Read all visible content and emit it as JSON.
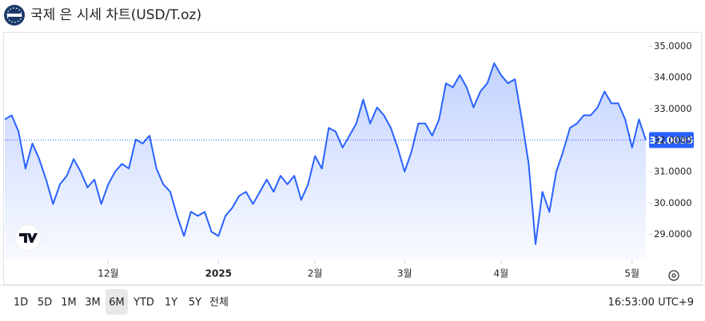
{
  "header": {
    "title": "국제 은 시세 차트(USD/T.oz)"
  },
  "chart_data": {
    "type": "area",
    "series": [
      {
        "name": "Silver",
        "color": "#2962ff",
        "values": [
          32.67,
          32.8,
          32.28,
          31.1,
          31.9,
          31.4,
          30.75,
          29.97,
          30.6,
          30.87,
          31.4,
          31.0,
          30.5,
          30.75,
          29.97,
          30.6,
          31.0,
          31.25,
          31.1,
          32.03,
          31.9,
          32.15,
          31.1,
          30.6,
          30.36,
          29.59,
          28.95,
          29.72,
          29.59,
          29.72,
          29.08,
          28.95,
          29.59,
          29.85,
          30.23,
          30.36,
          29.97,
          30.36,
          30.75,
          30.36,
          30.87,
          30.6,
          30.87,
          30.1,
          30.6,
          31.5,
          31.1,
          32.4,
          32.28,
          31.77,
          32.15,
          32.54,
          33.3,
          32.54,
          33.05,
          32.8,
          32.4,
          31.77,
          31.0,
          31.64,
          32.54,
          32.54,
          32.15,
          32.67,
          33.82,
          33.69,
          34.08,
          33.69,
          33.05,
          33.56,
          33.82,
          34.46,
          34.08,
          33.82,
          33.95,
          32.67,
          31.25,
          28.69,
          30.36,
          29.72,
          31.0,
          31.64,
          32.4,
          32.54,
          32.8,
          32.8,
          33.05,
          33.56,
          33.18,
          33.18,
          32.67,
          31.77,
          32.67,
          32.0095
        ]
      }
    ],
    "xlim": [
      0,
      93
    ],
    "xticks": [
      {
        "value": 15,
        "label": "12월"
      },
      {
        "value": 31,
        "label": "2025"
      },
      {
        "value": 45,
        "label": "2월"
      },
      {
        "value": 58,
        "label": "3월"
      },
      {
        "value": 72,
        "label": "4월"
      },
      {
        "value": 91,
        "label": "5월"
      }
    ],
    "ylim": [
      28.2,
      35.33
    ],
    "yticks": [
      {
        "value": 29,
        "label": "29.0000"
      },
      {
        "value": 30,
        "label": "30.0000"
      },
      {
        "value": 31,
        "label": "31.0000"
      },
      {
        "value": 32,
        "label": "32.0000"
      },
      {
        "value": 33,
        "label": "33.0000"
      },
      {
        "value": 34,
        "label": "34.0000"
      },
      {
        "value": 35,
        "label": "35.0000"
      }
    ]
  },
  "toolbar": {
    "ranges": [
      "1D",
      "5D",
      "1M",
      "3M",
      "6M",
      "YTD",
      "1Y",
      "5Y",
      "전체"
    ],
    "selected": 4,
    "time": "16:53:00 UTC+9"
  }
}
